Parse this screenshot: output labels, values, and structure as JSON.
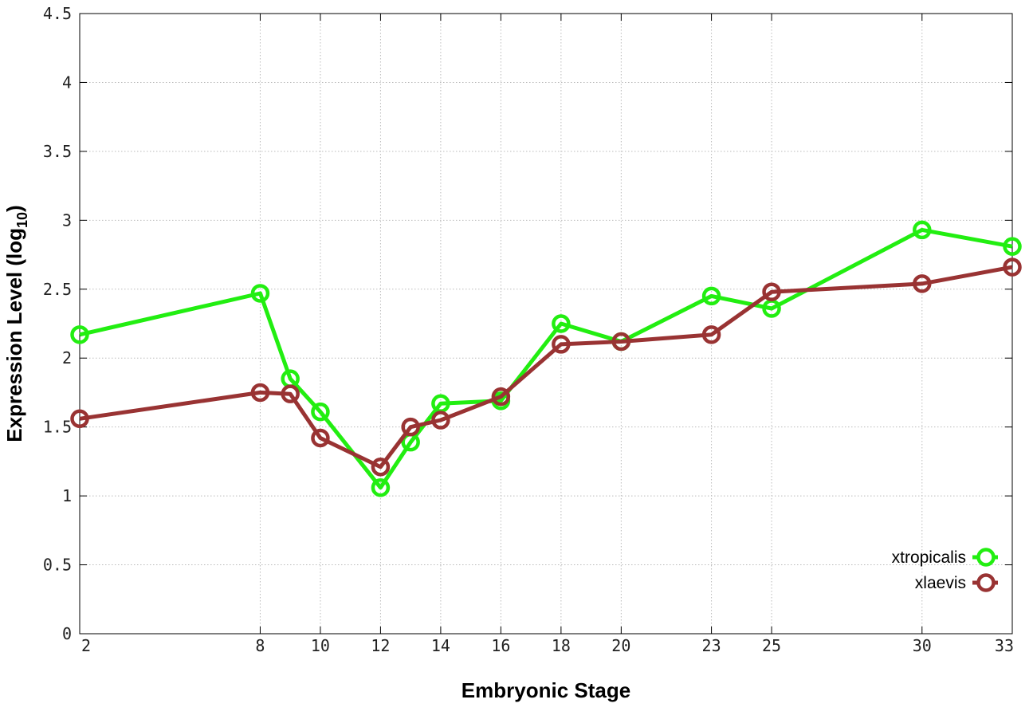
{
  "chart_data": {
    "type": "line",
    "title": "",
    "xlabel": "Embryonic Stage",
    "ylabel": {
      "main": "Expression Level (log",
      "sub": "10",
      "close": ")"
    },
    "xlim": [
      2,
      33
    ],
    "ylim": [
      0,
      4.5
    ],
    "x_ticks": [
      2,
      8,
      10,
      12,
      14,
      16,
      18,
      20,
      23,
      25,
      30,
      33
    ],
    "y_ticks": [
      0,
      0.5,
      1,
      1.5,
      2,
      2.5,
      3,
      3.5,
      4,
      4.5
    ],
    "y_tick_labels": [
      "0",
      "0.5",
      "1",
      "1.5",
      "2",
      "2.5",
      "3",
      "3.5",
      "4",
      "4.5"
    ],
    "grid": true,
    "legend_position": "bottom-right",
    "x": [
      2,
      8,
      9,
      10,
      12,
      13,
      14,
      16,
      18,
      20,
      23,
      25,
      30,
      33
    ],
    "series": [
      {
        "name": "xtropicalis",
        "color": "#22ee11",
        "values": [
          2.17,
          2.47,
          1.85,
          1.61,
          1.06,
          1.39,
          1.67,
          1.69,
          2.25,
          2.12,
          2.45,
          2.36,
          2.93,
          2.81
        ]
      },
      {
        "name": "xlaevis",
        "color": "#993333",
        "values": [
          1.56,
          1.75,
          1.74,
          1.42,
          1.21,
          1.5,
          1.55,
          1.72,
          2.1,
          2.12,
          2.17,
          2.48,
          2.54,
          2.66
        ]
      }
    ]
  }
}
